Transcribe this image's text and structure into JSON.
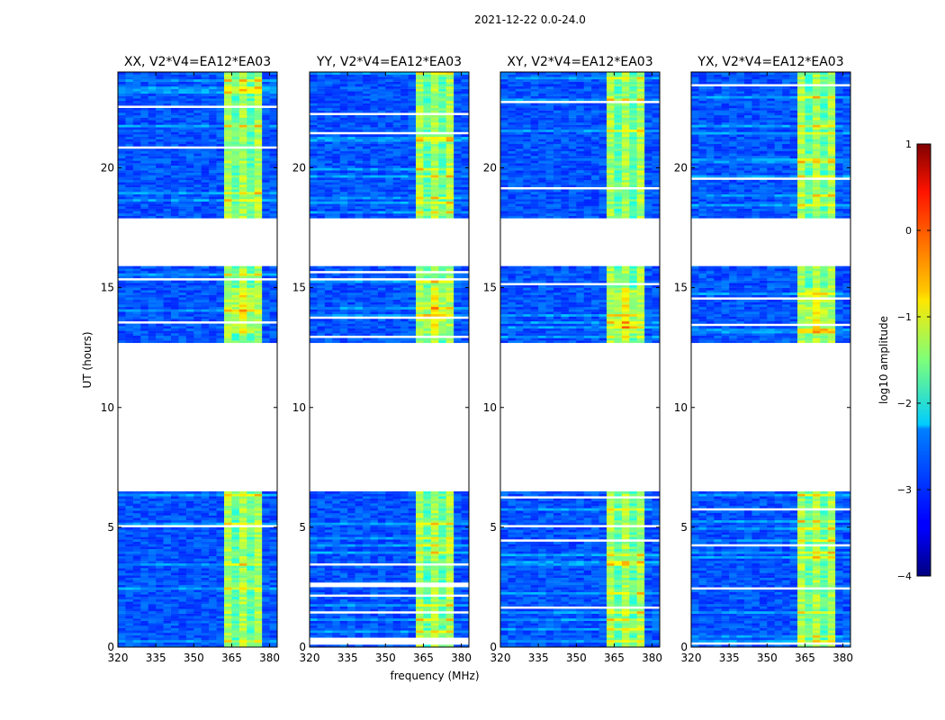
{
  "figure": {
    "title": "2021-12-22 0.0-24.0",
    "xlabel": "frequency (MHz)",
    "ylabel": "UT (hours)",
    "colorbar_label": "log10 amplitude",
    "colorbar_ticks": [
      "1",
      "0",
      "−1",
      "−2",
      "−3",
      "−4"
    ]
  },
  "colorbar": {
    "vmin": -4,
    "vmax": 1,
    "colormap": "jet",
    "ticks": [
      1,
      0,
      -1,
      -2,
      -3,
      -4
    ]
  },
  "chart_data": [
    {
      "type": "heatmap",
      "title": "XX, V2*V4=EA12*EA03",
      "xlim": [
        320,
        383
      ],
      "ylim": [
        0,
        24
      ],
      "xticks": [
        320,
        335,
        350,
        365,
        380
      ],
      "yticks": [
        0,
        5,
        10,
        15,
        20
      ],
      "xlabel": "",
      "ylabel": "UT (hours)",
      "bright_band_mhz": [
        360,
        376
      ],
      "flagged_ut_ranges": [
        [
          6.45,
          12.65
        ],
        [
          15.9,
          17.9
        ]
      ]
    },
    {
      "type": "heatmap",
      "title": "YY, V2*V4=EA12*EA03",
      "xlim": [
        320,
        383
      ],
      "ylim": [
        0,
        24
      ],
      "xticks": [
        320,
        335,
        350,
        365,
        380
      ],
      "yticks": [
        0,
        5,
        10,
        15,
        20
      ],
      "xlabel": "frequency (MHz)",
      "ylabel": "",
      "bright_band_mhz": [
        360,
        376
      ],
      "flagged_ut_ranges": [
        [
          6.45,
          12.65
        ],
        [
          15.9,
          17.9
        ]
      ]
    },
    {
      "type": "heatmap",
      "title": "XY, V2*V4=EA12*EA03",
      "xlim": [
        320,
        383
      ],
      "ylim": [
        0,
        24
      ],
      "xticks": [
        320,
        335,
        350,
        365,
        380
      ],
      "yticks": [
        0,
        5,
        10,
        15,
        20
      ],
      "xlabel": "",
      "ylabel": "",
      "bright_band_mhz": [
        360,
        376
      ],
      "flagged_ut_ranges": [
        [
          6.45,
          12.65
        ],
        [
          15.9,
          17.9
        ]
      ]
    },
    {
      "type": "heatmap",
      "title": "YX, V2*V4=EA12*EA03",
      "xlim": [
        320,
        383
      ],
      "ylim": [
        0,
        24
      ],
      "xticks": [
        320,
        335,
        350,
        365,
        380
      ],
      "yticks": [
        0,
        5,
        10,
        15,
        20
      ],
      "xlabel": "",
      "ylabel": "",
      "bright_band_mhz": [
        360,
        376
      ],
      "flagged_ut_ranges": [
        [
          6.45,
          12.65
        ],
        [
          15.9,
          17.9
        ]
      ]
    }
  ]
}
